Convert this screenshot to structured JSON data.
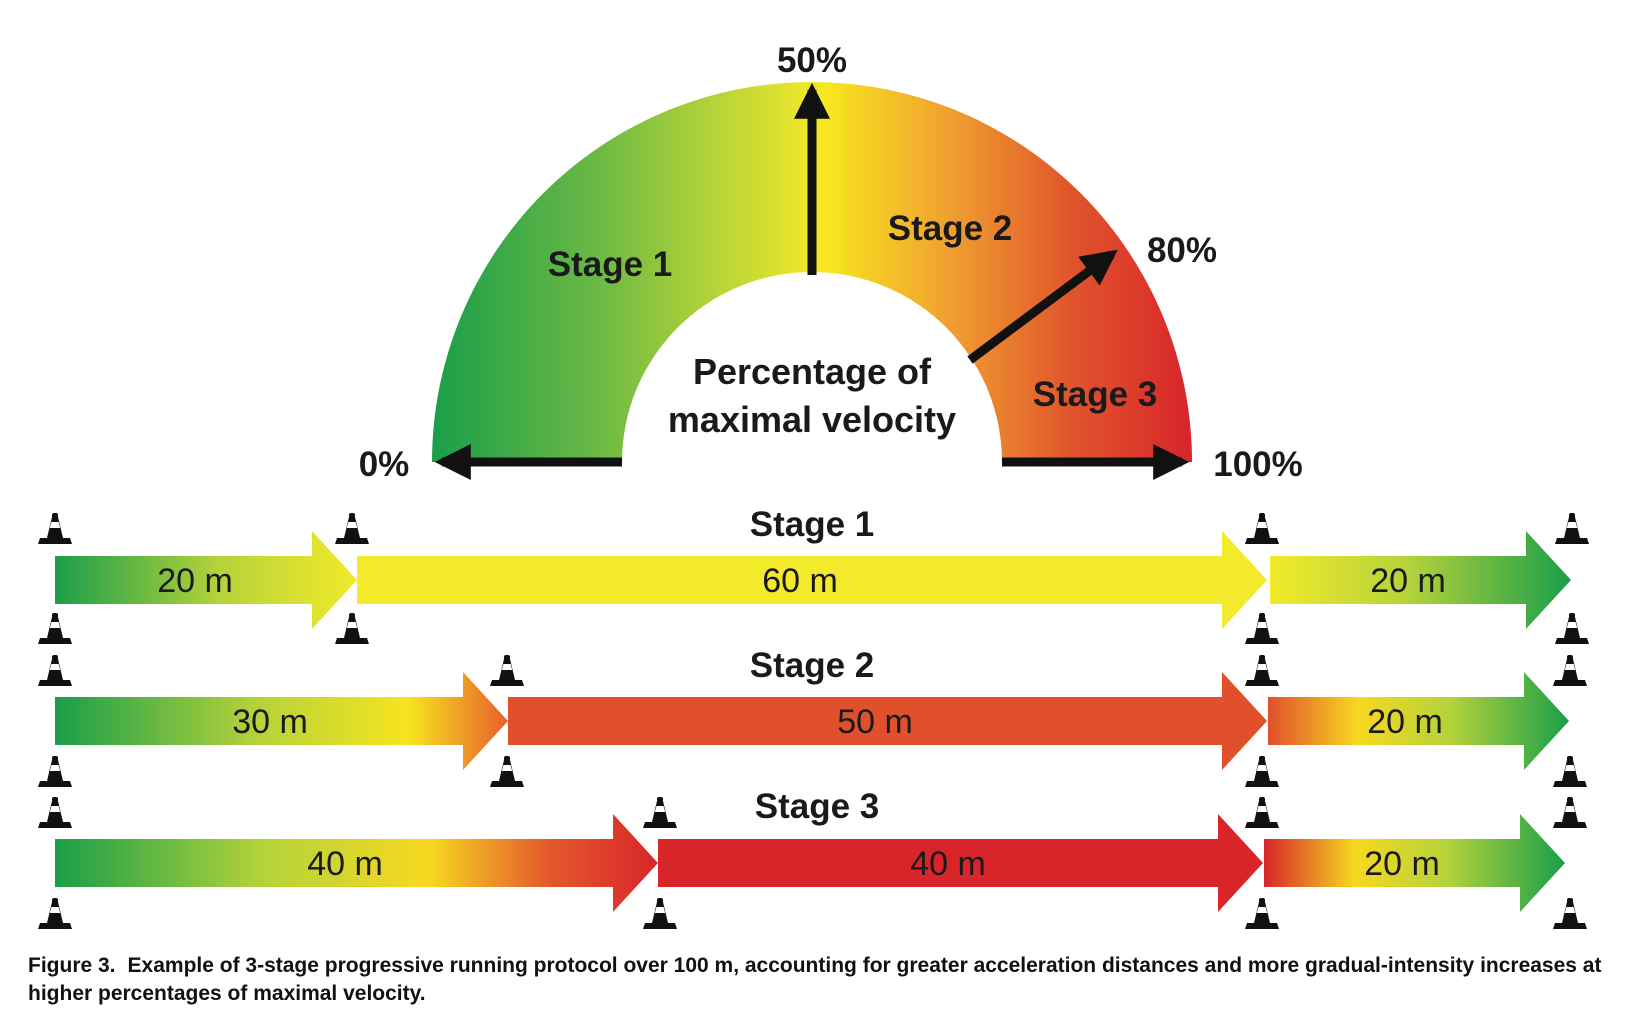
{
  "gauge": {
    "title_line1": "Percentage of",
    "title_line2": "maximal velocity",
    "zones": [
      {
        "label": "Stage 1",
        "from_pct": 0,
        "to_pct": 50
      },
      {
        "label": "Stage 2",
        "from_pct": 50,
        "to_pct": 80
      },
      {
        "label": "Stage 3",
        "from_pct": 80,
        "to_pct": 100
      }
    ],
    "markers": [
      {
        "label": "0%",
        "value": 0
      },
      {
        "label": "50%",
        "value": 50
      },
      {
        "label": "80%",
        "value": 80
      },
      {
        "label": "100%",
        "value": 100
      }
    ],
    "colors": {
      "green": "#1a9e4a",
      "yellow": "#f5e625",
      "orange": "#f0a030",
      "red": "#d8252a"
    }
  },
  "protocol": {
    "total_distance_m": 100,
    "stages": [
      {
        "title": "Stage 1",
        "segments": [
          {
            "label": "20 m",
            "distance_m": 20,
            "type": "acceleration"
          },
          {
            "label": "60 m",
            "distance_m": 60,
            "type": "constant"
          },
          {
            "label": "20 m",
            "distance_m": 20,
            "type": "deceleration"
          }
        ]
      },
      {
        "title": "Stage 2",
        "segments": [
          {
            "label": "30 m",
            "distance_m": 30,
            "type": "acceleration"
          },
          {
            "label": "50 m",
            "distance_m": 50,
            "type": "constant"
          },
          {
            "label": "20 m",
            "distance_m": 20,
            "type": "deceleration"
          }
        ]
      },
      {
        "title": "Stage 3",
        "segments": [
          {
            "label": "40 m",
            "distance_m": 40,
            "type": "acceleration"
          },
          {
            "label": "40 m",
            "distance_m": 40,
            "type": "constant"
          },
          {
            "label": "20 m",
            "distance_m": 20,
            "type": "deceleration"
          }
        ]
      }
    ],
    "cone_icon": "traffic-cone-icon"
  },
  "caption": {
    "label": "Figure 3.",
    "text": "Example of 3-stage progressive running protocol over 100 m, accounting for greater acceleration distances and more gradual-intensity increases at higher percentages of maximal velocity."
  }
}
